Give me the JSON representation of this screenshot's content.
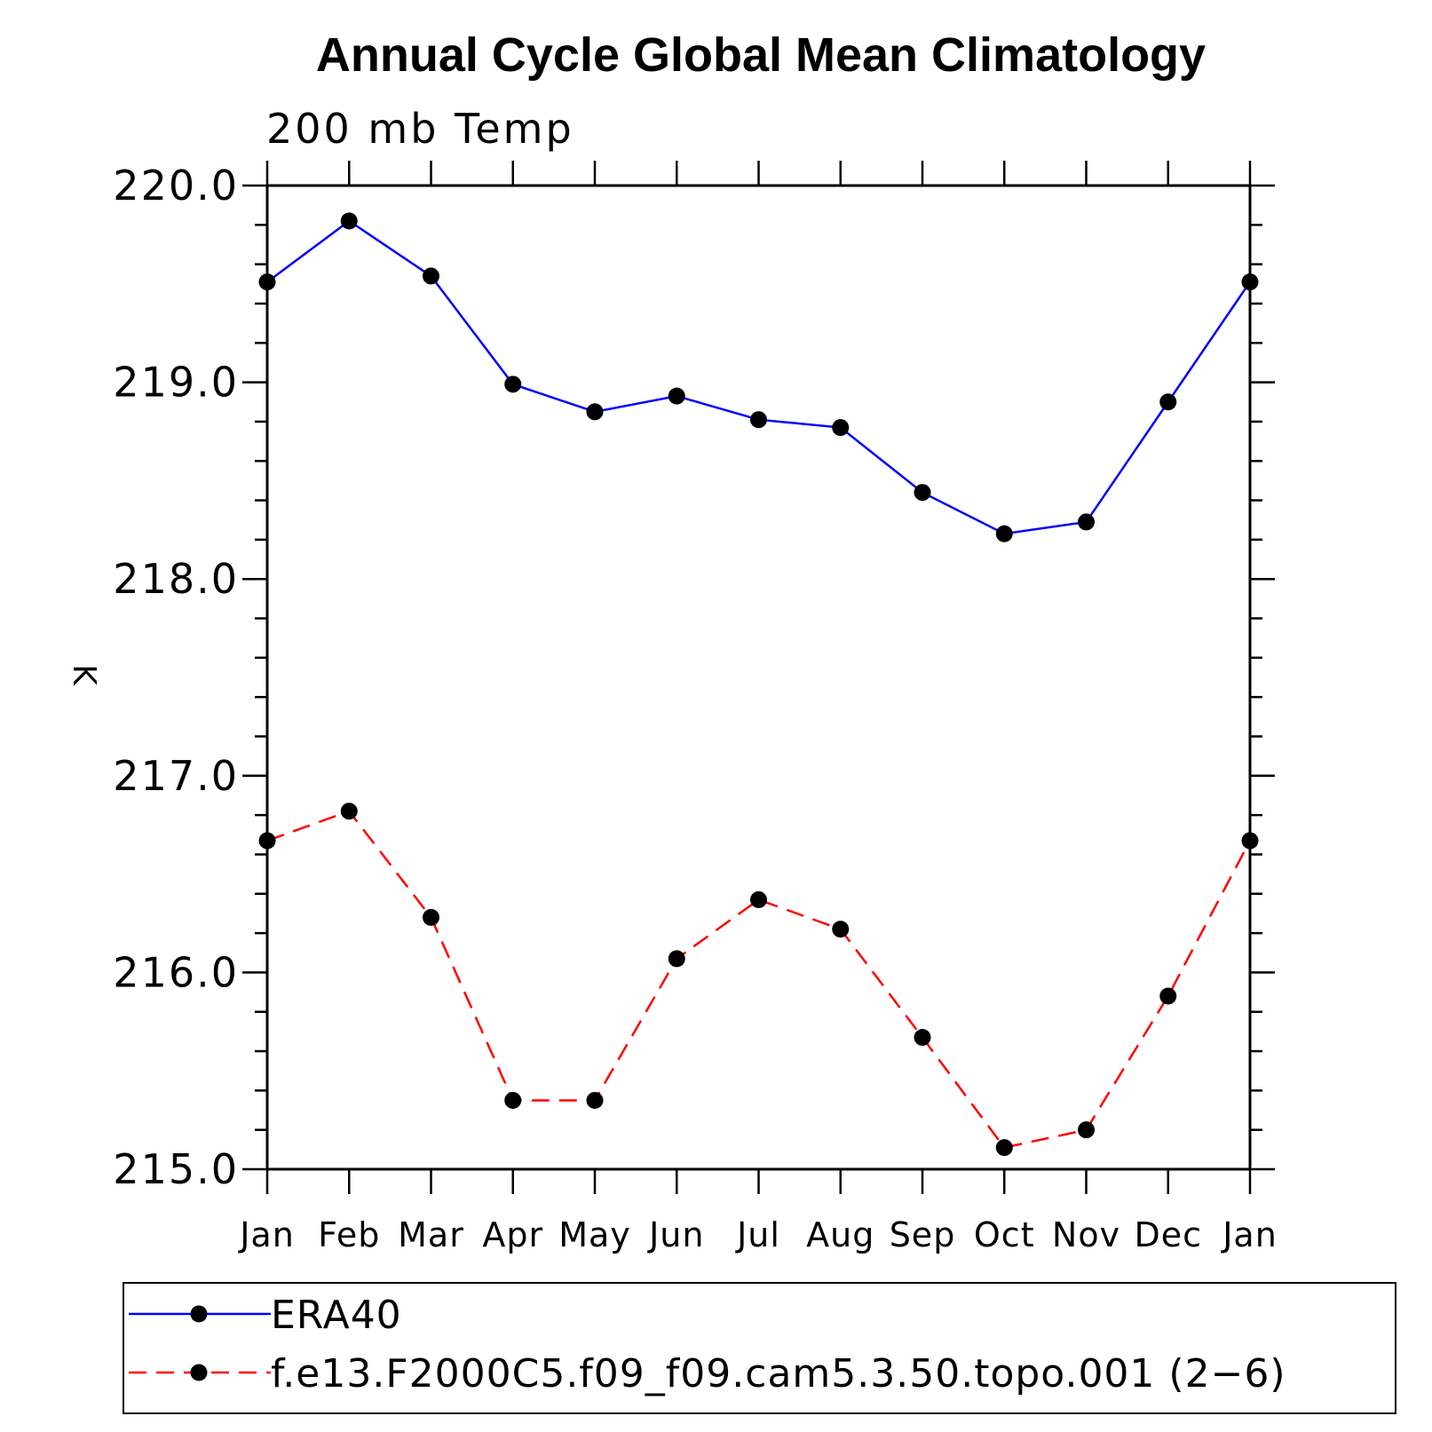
{
  "chart_data": {
    "type": "line",
    "title": "Annual Cycle Global Mean Climatology",
    "subtitle": "200 mb Temp",
    "xlabel": "",
    "ylabel": "K",
    "categories": [
      "Jan",
      "Feb",
      "Mar",
      "Apr",
      "May",
      "Jun",
      "Jul",
      "Aug",
      "Sep",
      "Oct",
      "Nov",
      "Dec",
      "Jan"
    ],
    "ylim": [
      215.0,
      220.0
    ],
    "yticks": [
      "215.0",
      "216.0",
      "217.0",
      "218.0",
      "219.0",
      "220.0"
    ],
    "grid": false,
    "legend_position": "bottom",
    "series": [
      {
        "name": "ERA40",
        "color": "#0000ff",
        "style": "solid",
        "marker": "filled-circle",
        "values": [
          219.51,
          219.82,
          219.54,
          218.99,
          218.85,
          218.93,
          218.81,
          218.77,
          218.44,
          218.23,
          218.29,
          218.9,
          219.51
        ]
      },
      {
        "name": "f.e13.F2000C5.f09_f09.cam5.3.50.topo.001 (2−6)",
        "color": "#ff0000",
        "style": "dashed",
        "marker": "filled-circle",
        "values": [
          216.67,
          216.82,
          216.28,
          215.35,
          215.35,
          216.07,
          216.37,
          216.22,
          215.67,
          215.11,
          215.2,
          215.88,
          216.67
        ]
      }
    ]
  }
}
